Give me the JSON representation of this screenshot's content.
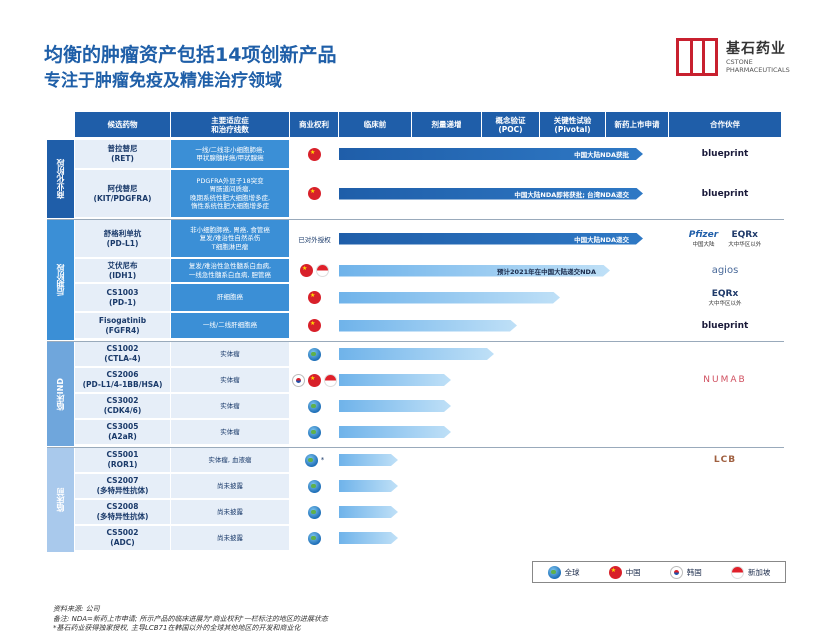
{
  "title": "均衡的肿瘤资产包括14项创新产品",
  "subtitle": "专注于肿瘤免疫及精准治疗领域",
  "logo": {
    "cn": "基石药业",
    "en_line1": "CSTONE",
    "en_line2": "PHARMACEUTICALS"
  },
  "headers": {
    "drug": "候选药物",
    "indication": "主要适应症\n和治疗线数",
    "rights": "商业权利",
    "preclinical": "临床前",
    "dose": "剂量递增",
    "poc": "概念验证\n(POC)",
    "pivotal": "关键性试验\n(Pivotal)",
    "nda": "新药上市申请",
    "partner": "合作伙伴"
  },
  "groups": [
    {
      "label": "商业化阶段"
    },
    {
      "label": "后期阶段"
    },
    {
      "label": "临床IND"
    },
    {
      "label": "临床前"
    }
  ],
  "rows": [
    {
      "drug": "普拉替尼\n(RET)",
      "indication": "一线/二线非小细胞肺癌,\n甲状腺髓样癌/甲状腺癌",
      "rights": [
        "cn"
      ],
      "progress": 0.92,
      "bar_text": "中国大陆NDA获批",
      "partner": "blueprint"
    },
    {
      "drug": "阿伐替尼\n(KIT/PDGFRA)",
      "indication": "PDGFRA外显子18突变\n胃肠道间质瘤,\n晚期系统性肥大细胞增多症,\n惰性系统性肥大细胞增多症",
      "rights": [
        "cn"
      ],
      "progress": 0.92,
      "bar_text": "中国大陆NDA即将获批; 台湾NDA递交",
      "partner": "blueprint"
    },
    {
      "drug": "舒格利单抗\n(PD-L1)",
      "indication": "非小细胞肺癌, 胃癌, 食管癌\n复发/难治性自然杀伤\nT细胞淋巴瘤",
      "rights_text": "已对外授权",
      "progress": 0.92,
      "bar_text": "中国大陆NDA递交",
      "partner": "pfizer_eqrx",
      "partner_sub1": "中国大陆",
      "partner_sub2": "大中华区以外"
    },
    {
      "drug": "艾伏尼布\n(IDH1)",
      "indication": "复发/难治性急性髓系白血病,\n一线急性髓系白血病, 胆管癌",
      "rights": [
        "cn",
        "sg"
      ],
      "progress": 0.82,
      "bar_text": "预计2021年在中国大陆递交NDA",
      "partner": "agios"
    },
    {
      "drug": "CS1003\n(PD-1)",
      "indication": "肝细胞癌",
      "rights": [
        "cn"
      ],
      "progress": 0.67,
      "bar_text": "",
      "partner": "eqrx",
      "partner_sub1": "大中华区以外"
    },
    {
      "drug": "Fisogatinib\n(FGFR4)",
      "indication": "一线/二线肝细胞癌",
      "rights": [
        "cn"
      ],
      "progress": 0.54,
      "bar_text": "",
      "partner": "blueprint"
    },
    {
      "drug": "CS1002\n(CTLA-4)",
      "indication": "实体瘤",
      "rights": [
        "globe"
      ],
      "progress": 0.47,
      "bar_text": "",
      "partner": ""
    },
    {
      "drug": "CS2006\n(PD-L1/4-1BB/HSA)",
      "indication": "实体瘤",
      "rights": [
        "kr",
        "cn",
        "sg"
      ],
      "progress": 0.34,
      "bar_text": "",
      "partner": "numab"
    },
    {
      "drug": "CS3002\n(CDK4/6)",
      "indication": "实体瘤",
      "rights": [
        "globe"
      ],
      "progress": 0.34,
      "bar_text": "",
      "partner": ""
    },
    {
      "drug": "CS3005\n(A2aR)",
      "indication": "实体瘤",
      "rights": [
        "globe"
      ],
      "progress": 0.34,
      "bar_text": "",
      "partner": ""
    },
    {
      "drug": "CS5001\n(ROR1)",
      "indication": "实体瘤, 血液瘤",
      "rights": [
        "globe"
      ],
      "rights_mark": "*",
      "progress": 0.18,
      "bar_text": "",
      "partner": "lcb"
    },
    {
      "drug": "CS2007\n(多特异性抗体)",
      "indication": "尚未披露",
      "rights": [
        "globe"
      ],
      "progress": 0.18,
      "bar_text": "",
      "partner": ""
    },
    {
      "drug": "CS2008\n(多特异性抗体)",
      "indication": "尚未披露",
      "rights": [
        "globe"
      ],
      "progress": 0.18,
      "bar_text": "",
      "partner": ""
    },
    {
      "drug": "CS5002\n(ADC)",
      "indication": "尚未披露",
      "rights": [
        "globe"
      ],
      "progress": 0.18,
      "bar_text": "",
      "partner": ""
    }
  ],
  "partners": {
    "blueprint": "blueprint",
    "pfizer": "Pfizer",
    "eqrx": "EQRx",
    "agios": "agios",
    "numab": "NUMAB",
    "lcb": "LCB"
  },
  "legend": {
    "globe": "全球",
    "cn": "中国",
    "kr": "韩国",
    "sg": "新加坡"
  },
  "footnotes": [
    "资料来源: 公司",
    "备注: NDA=新药上市申请; 所示产品的临床进展为\"商业权利\"一栏标注的地区的进展状态",
    "*基石药业获得独家授权, 主导LCB71在韩国以外的全球其他地区的开发和商业化"
  ]
}
